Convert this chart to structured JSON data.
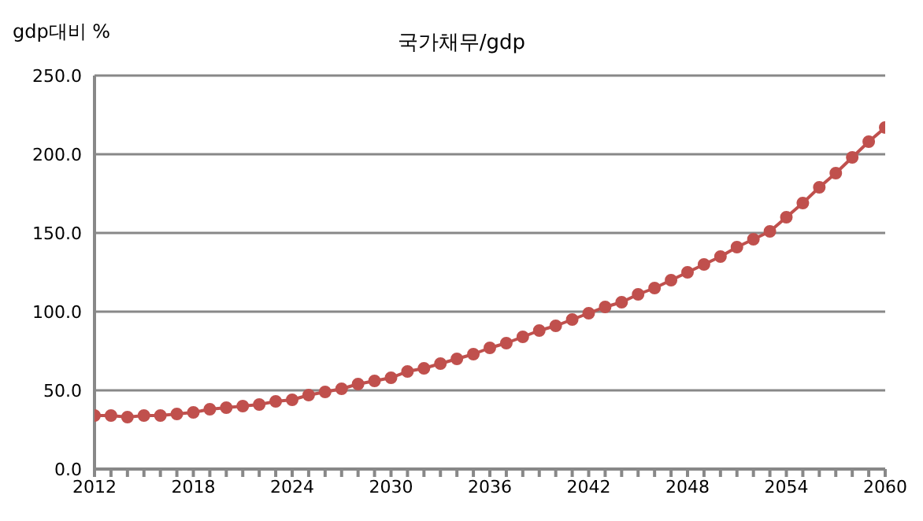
{
  "chart_data": {
    "type": "line",
    "title": "국가채무/gdp",
    "ylabel": "gdp대비 %",
    "x": [
      2012,
      2013,
      2014,
      2015,
      2016,
      2017,
      2018,
      2019,
      2020,
      2021,
      2022,
      2023,
      2024,
      2025,
      2026,
      2027,
      2028,
      2029,
      2030,
      2031,
      2032,
      2033,
      2034,
      2035,
      2036,
      2037,
      2038,
      2039,
      2040,
      2041,
      2042,
      2043,
      2044,
      2045,
      2046,
      2047,
      2048,
      2049,
      2050,
      2051,
      2052,
      2053,
      2054,
      2055,
      2056,
      2057,
      2058,
      2059,
      2060
    ],
    "series": [
      {
        "color": "#c0504d",
        "values": [
          34,
          34,
          33,
          34,
          34,
          35,
          36,
          38,
          39,
          40,
          41,
          43,
          44,
          47,
          49,
          51,
          54,
          56,
          58,
          62,
          64,
          67,
          70,
          73,
          77,
          80,
          84,
          88,
          91,
          95,
          99,
          103,
          106,
          111,
          115,
          120,
          125,
          130,
          135,
          141,
          146,
          151,
          160,
          169,
          179,
          188,
          198,
          208,
          217
        ]
      }
    ],
    "xlim": [
      2012,
      2060
    ],
    "xticks": [
      2012,
      {
        "value": 2013,
        "label": null
      },
      {
        "value": 2014,
        "label": null
      },
      {
        "value": 2015,
        "label": null
      },
      {
        "value": 2016,
        "label": null
      },
      {
        "value": 2017,
        "label": null
      },
      2018,
      {
        "value": 2019,
        "label": null
      },
      {
        "value": 2020,
        "label": null
      },
      {
        "value": 2021,
        "label": null
      },
      {
        "value": 2022,
        "label": null
      },
      {
        "value": 2023,
        "label": null
      },
      2024,
      {
        "value": 2025,
        "label": null
      },
      {
        "value": 2026,
        "label": null
      },
      {
        "value": 2027,
        "label": null
      },
      {
        "value": 2028,
        "label": null
      },
      {
        "value": 2029,
        "label": null
      },
      2030,
      {
        "value": 2031,
        "label": null
      },
      {
        "value": 2032,
        "label": null
      },
      {
        "value": 2033,
        "label": null
      },
      {
        "value": 2034,
        "label": null
      },
      {
        "value": 2035,
        "label": null
      },
      2036,
      {
        "value": 2037,
        "label": null
      },
      {
        "value": 2038,
        "label": null
      },
      {
        "value": 2039,
        "label": null
      },
      {
        "value": 2040,
        "label": null
      },
      {
        "value": 2041,
        "label": null
      },
      2042,
      {
        "value": 2043,
        "label": null
      },
      {
        "value": 2044,
        "label": null
      },
      {
        "value": 2045,
        "label": null
      },
      {
        "value": 2046,
        "label": null
      },
      {
        "value": 2047,
        "label": null
      },
      2048,
      {
        "value": 2049,
        "label": null
      },
      {
        "value": 2050,
        "label": null
      },
      {
        "value": 2051,
        "label": null
      },
      {
        "value": 2052,
        "label": null
      },
      {
        "value": 2053,
        "label": null
      },
      2054,
      {
        "value": 2055,
        "label": null
      },
      {
        "value": 2056,
        "label": null
      },
      {
        "value": 2057,
        "label": null
      },
      {
        "value": 2058,
        "label": null
      },
      {
        "value": 2059,
        "label": null
      },
      2060
    ],
    "ylim": [
      0,
      250
    ],
    "yticks": [
      {
        "value": 0,
        "label": "0.0"
      },
      {
        "value": 50,
        "label": "50.0"
      },
      {
        "value": 100,
        "label": "100.0"
      },
      {
        "value": 150,
        "label": "150.0"
      },
      {
        "value": 200,
        "label": "200.0"
      },
      {
        "value": 250,
        "label": "250.0"
      }
    ],
    "grid": "y",
    "marker": "circle",
    "line_style": "solid"
  }
}
